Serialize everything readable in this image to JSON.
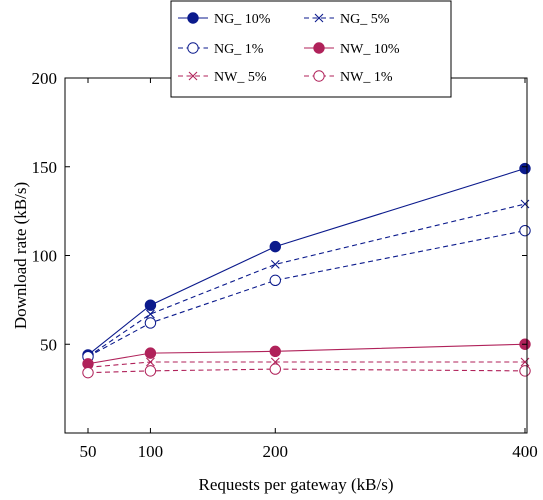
{
  "chart_data": {
    "type": "line",
    "title": "",
    "xlabel": "Requests per gateway (kB/s)",
    "ylabel": "Download rate (kB/s)",
    "xlim": [
      50,
      400
    ],
    "ylim": [
      0,
      200
    ],
    "xticks": [
      50,
      100,
      200,
      400
    ],
    "yticks": [
      50,
      100,
      150,
      200
    ],
    "grid": false,
    "legend_position": "top-center",
    "x": [
      50,
      100,
      200,
      400
    ],
    "series": [
      {
        "name": "NG_ 10%",
        "values": [
          44,
          72,
          105,
          149
        ],
        "color": "#0b1a8c",
        "dash": "solid",
        "marker": "filled-circle"
      },
      {
        "name": "NG_ 5%",
        "values": [
          43,
          67,
          95,
          129
        ],
        "color": "#0b1a8c",
        "dash": "dashed",
        "marker": "x"
      },
      {
        "name": "NG_ 1%",
        "values": [
          43,
          62,
          86,
          114
        ],
        "color": "#0b1a8c",
        "dash": "dashed",
        "marker": "open-circle"
      },
      {
        "name": "NW_ 10%",
        "values": [
          39,
          45,
          46,
          50
        ],
        "color": "#b0225a",
        "dash": "solid",
        "marker": "filled-circle"
      },
      {
        "name": "NW_ 5%",
        "values": [
          37,
          40,
          40,
          40
        ],
        "color": "#b0225a",
        "dash": "dashed",
        "marker": "x"
      },
      {
        "name": "NW_ 1%",
        "values": [
          34,
          35,
          36,
          35
        ],
        "color": "#b0225a",
        "dash": "dashed",
        "marker": "open-circle"
      }
    ]
  }
}
